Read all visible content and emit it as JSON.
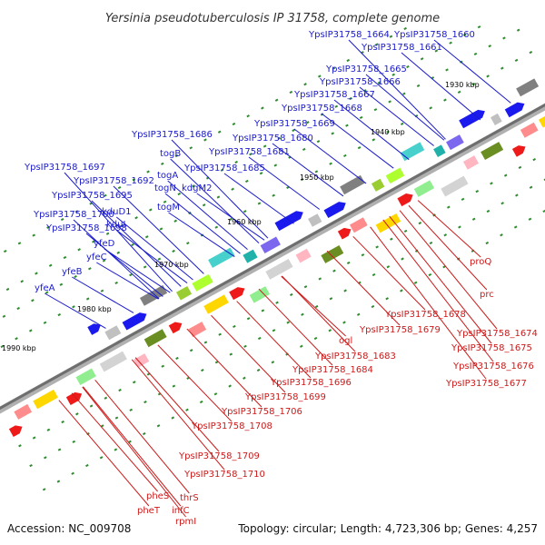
{
  "title": "Yersinia pseudotuberculosis IP 31758, complete genome",
  "footer": {
    "accession": "Accession: NC_009708",
    "topology": "Topology: circular; Length: 4,723,306 bp; Genes: 4,257"
  },
  "colors": {
    "forward_label": "#1a1acc",
    "reverse_label": "#cc1a1a",
    "forward_gene": "#1a1aee",
    "reverse_gene": "#ee1a1a",
    "backbone": "#888888",
    "tick": "#2e8b2e"
  },
  "kbp_labels": [
    {
      "text": "1930 kbp"
    },
    {
      "text": "1940 kbp"
    },
    {
      "text": "1950 kbp"
    },
    {
      "text": "1960 kbp"
    },
    {
      "text": "1970 kbp"
    },
    {
      "text": "1980 kbp"
    },
    {
      "text": "1990 kbp"
    }
  ],
  "forward_labels": [
    {
      "text": "YpsIP31758_1664"
    },
    {
      "text": "YpsIP31758_1660"
    },
    {
      "text": "YpsIP31758_1661"
    },
    {
      "text": "YpsIP31758_1665"
    },
    {
      "text": "YpsIP31758_1666"
    },
    {
      "text": "YpsIP31758_1667"
    },
    {
      "text": "YpsIP31758_1668"
    },
    {
      "text": "YpsIP31758_1669"
    },
    {
      "text": "YpsIP31758_1686"
    },
    {
      "text": "YpsIP31758_1680"
    },
    {
      "text": "togB"
    },
    {
      "text": "YpsIP31758_1681"
    },
    {
      "text": "YpsIP31758_1685"
    },
    {
      "text": "YpsIP31758_1697"
    },
    {
      "text": "togA"
    },
    {
      "text": "YpsIP31758_1692"
    },
    {
      "text": "togN"
    },
    {
      "text": "kdgM2"
    },
    {
      "text": "YpsIP31758_1695"
    },
    {
      "text": "togM"
    },
    {
      "text": "kduD1"
    },
    {
      "text": "YpsIP31758_1700"
    },
    {
      "text": "kduI"
    },
    {
      "text": "YpsIP31758_1698"
    },
    {
      "text": "yfeD"
    },
    {
      "text": "yfeC"
    },
    {
      "text": "yfeB"
    },
    {
      "text": "yfeA"
    }
  ],
  "reverse_labels": [
    {
      "text": "proQ"
    },
    {
      "text": "prc"
    },
    {
      "text": "YpsIP31758_1678"
    },
    {
      "text": "YpsIP31758_1674"
    },
    {
      "text": "YpsIP31758_1679"
    },
    {
      "text": "YpsIP31758_1675"
    },
    {
      "text": "ogl"
    },
    {
      "text": "YpsIP31758_1683"
    },
    {
      "text": "YpsIP31758_1676"
    },
    {
      "text": "YpsIP31758_1684"
    },
    {
      "text": "YpsIP31758_1677"
    },
    {
      "text": "YpsIP31758_1696"
    },
    {
      "text": "YpsIP31758_1699"
    },
    {
      "text": "YpsIP31758_1706"
    },
    {
      "text": "YpsIP31758_1708"
    },
    {
      "text": "YpsIP31758_1709"
    },
    {
      "text": "YpsIP31758_1710"
    },
    {
      "text": "thrS"
    },
    {
      "text": "pheS"
    },
    {
      "text": "infC"
    },
    {
      "text": "pheT"
    },
    {
      "text": "rpmI"
    }
  ]
}
